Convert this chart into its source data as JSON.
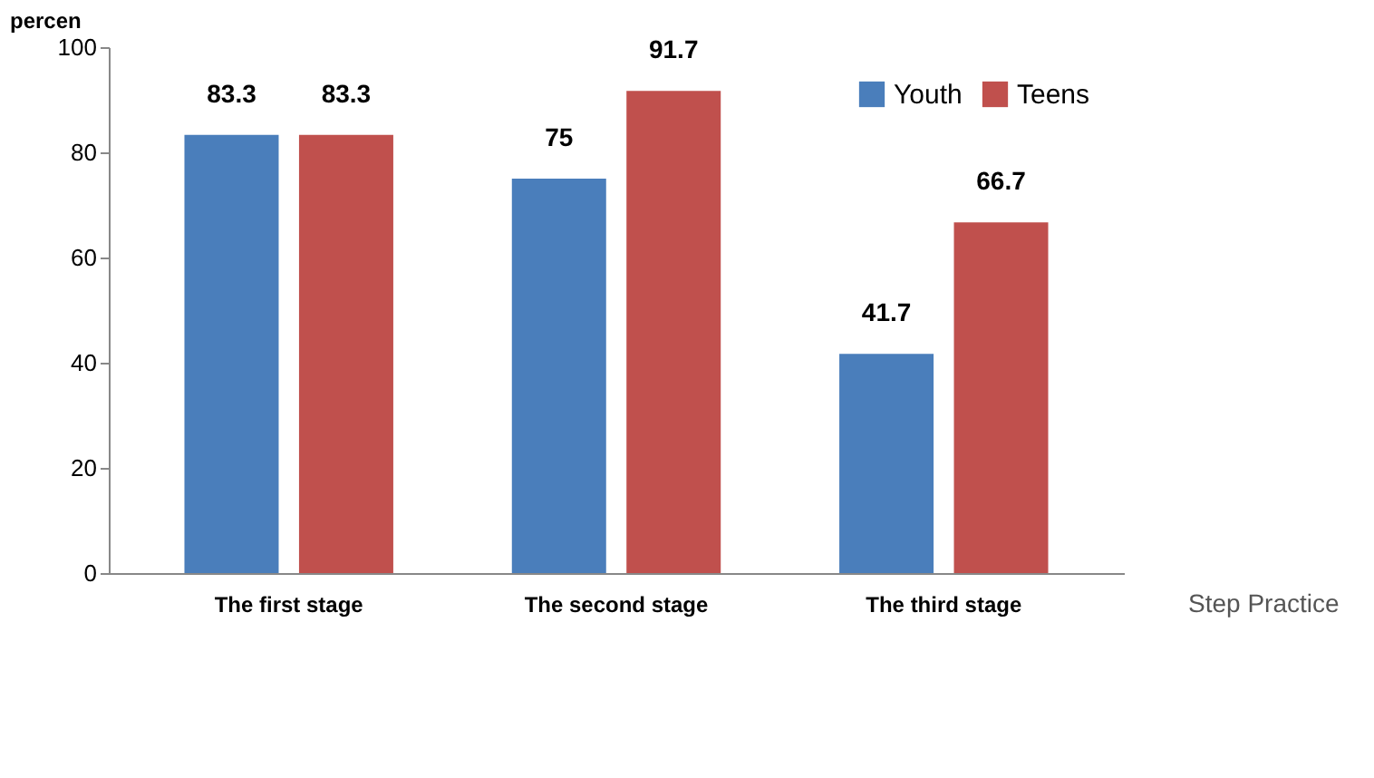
{
  "chart_data": {
    "type": "bar",
    "categories": [
      "The first stage",
      "The second stage",
      "The third stage"
    ],
    "series": [
      {
        "name": "Youth",
        "color": "#4a7ebb",
        "values": [
          83.3,
          75,
          41.7
        ]
      },
      {
        "name": "Teens",
        "color": "#c0504d",
        "values": [
          83.3,
          91.7,
          66.7
        ]
      }
    ],
    "ylim": [
      0,
      100
    ],
    "yticks": [
      0,
      20,
      40,
      60,
      80,
      100
    ],
    "ylabel": "percen",
    "xlabel": "Step Practice",
    "grid": false,
    "legend": "top right",
    "data_labels": true
  }
}
